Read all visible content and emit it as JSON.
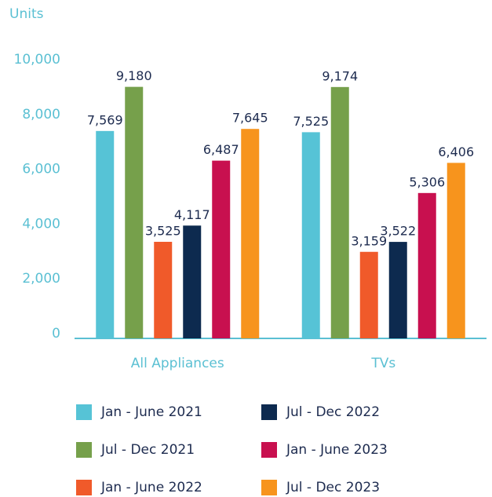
{
  "chart_data": {
    "type": "bar",
    "y_axis_label": "Units",
    "categories": [
      "All Appliances",
      "TVs"
    ],
    "series": [
      {
        "name": "Jan - June 2021",
        "color": "#56c3d6",
        "values": [
          7569,
          7525
        ],
        "value_labels": [
          "7,569",
          "7,525"
        ]
      },
      {
        "name": "Jul - Dec 2021",
        "color": "#76a04b",
        "values": [
          9180,
          9174
        ],
        "value_labels": [
          "9,180",
          "9,174"
        ]
      },
      {
        "name": "Jan - June 2022",
        "color": "#f05a2a",
        "values": [
          3525,
          3159
        ],
        "value_labels": [
          "3,525",
          "3,159"
        ]
      },
      {
        "name": "Jul - Dec 2022",
        "color": "#0d2a4f",
        "values": [
          4117,
          3522
        ],
        "value_labels": [
          "4,117",
          "3,522"
        ]
      },
      {
        "name": "Jan - June 2023",
        "color": "#c8104f",
        "values": [
          6487,
          5306
        ],
        "value_labels": [
          "6,487",
          "5,306"
        ]
      },
      {
        "name": "Jul - Dec 2023",
        "color": "#f7941d",
        "values": [
          7645,
          6406
        ],
        "value_labels": [
          "7,645",
          "6,406"
        ]
      }
    ],
    "ylim": [
      0,
      10000
    ],
    "yticks": [
      0,
      {
        "value": 2000,
        "label": "2,000"
      },
      {
        "value": 4000,
        "label": "4,000"
      },
      {
        "value": 6000,
        "label": "6,000"
      },
      {
        "value": 8000,
        "label": "8,000"
      },
      {
        "value": 10000,
        "label": "10,000"
      }
    ],
    "grid": false
  }
}
